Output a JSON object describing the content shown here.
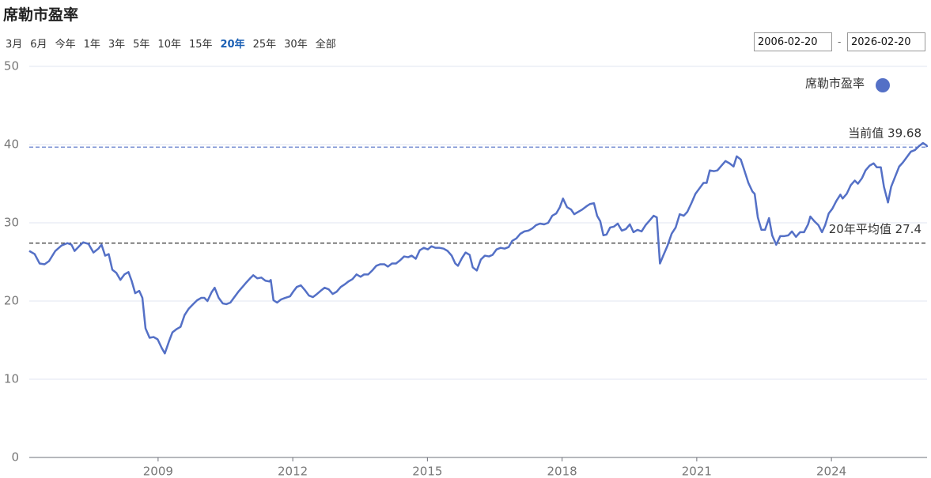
{
  "header": {
    "title": "席勒市盈率",
    "range_buttons": [
      "3月",
      "6月",
      "今年",
      "1年",
      "3年",
      "5年",
      "10年",
      "15年",
      "20年",
      "25年",
      "30年",
      "全部"
    ],
    "active_range_index": 8,
    "start_date": "2006-02-20",
    "end_date": "2026-02-20",
    "date_separator": "-"
  },
  "chart_data": {
    "type": "line",
    "x": [
      2006.13,
      2006.25,
      2006.36,
      2006.47,
      2006.57,
      2006.71,
      2006.85,
      2006.98,
      2007.07,
      2007.14,
      2007.24,
      2007.33,
      2007.45,
      2007.56,
      2007.67,
      2007.74,
      2007.82,
      2007.9,
      2007.98,
      2008.07,
      2008.16,
      2008.25,
      2008.34,
      2008.41,
      2008.49,
      2008.58,
      2008.65,
      2008.72,
      2008.81,
      2008.9,
      2008.99,
      2009.08,
      2009.15,
      2009.24,
      2009.32,
      2009.41,
      2009.5,
      2009.59,
      2009.68,
      2009.78,
      2009.87,
      2009.96,
      2010.03,
      2010.1,
      2010.19,
      2010.26,
      2010.35,
      2010.44,
      2010.52,
      2010.61,
      2010.7,
      2010.79,
      2010.88,
      2010.97,
      2011.05,
      2011.12,
      2011.21,
      2011.3,
      2011.39,
      2011.48,
      2011.51,
      2011.57,
      2011.65,
      2011.74,
      2011.83,
      2011.94,
      2012.01,
      2012.09,
      2012.18,
      2012.27,
      2012.36,
      2012.45,
      2012.54,
      2012.62,
      2012.71,
      2012.8,
      2012.89,
      2012.98,
      2013.07,
      2013.15,
      2013.24,
      2013.33,
      2013.42,
      2013.51,
      2013.59,
      2013.68,
      2013.77,
      2013.86,
      2013.95,
      2014.04,
      2014.12,
      2014.21,
      2014.3,
      2014.39,
      2014.48,
      2014.57,
      2014.65,
      2014.74,
      2014.83,
      2014.92,
      2015.01,
      2015.09,
      2015.18,
      2015.27,
      2015.36,
      2015.45,
      2015.54,
      2015.62,
      2015.68,
      2015.77,
      2015.85,
      2015.94,
      2016.01,
      2016.1,
      2016.19,
      2016.28,
      2016.37,
      2016.45,
      2016.54,
      2016.63,
      2016.72,
      2016.81,
      2016.89,
      2016.98,
      2017.07,
      2017.16,
      2017.25,
      2017.34,
      2017.42,
      2017.51,
      2017.6,
      2017.69,
      2017.78,
      2017.87,
      2017.95,
      2018.02,
      2018.11,
      2018.2,
      2018.27,
      2018.36,
      2018.45,
      2018.54,
      2018.62,
      2018.71,
      2018.78,
      2018.85,
      2018.92,
      2018.99,
      2019.07,
      2019.15,
      2019.24,
      2019.33,
      2019.42,
      2019.51,
      2019.59,
      2019.68,
      2019.77,
      2019.86,
      2019.95,
      2020.04,
      2020.11,
      2020.18,
      2020.26,
      2020.35,
      2020.44,
      2020.53,
      2020.62,
      2020.71,
      2020.79,
      2020.88,
      2020.97,
      2021.06,
      2021.15,
      2021.22,
      2021.29,
      2021.38,
      2021.46,
      2021.55,
      2021.64,
      2021.73,
      2021.82,
      2021.89,
      2021.98,
      2022.06,
      2022.15,
      2022.24,
      2022.29,
      2022.36,
      2022.44,
      2022.52,
      2022.61,
      2022.68,
      2022.77,
      2022.86,
      2022.95,
      2023.04,
      2023.12,
      2023.21,
      2023.3,
      2023.39,
      2023.48,
      2023.53,
      2023.62,
      2023.71,
      2023.79,
      2023.86,
      2023.94,
      2024.02,
      2024.11,
      2024.2,
      2024.25,
      2024.34,
      2024.43,
      2024.52,
      2024.59,
      2024.68,
      2024.76,
      2024.85,
      2024.94,
      2025.01,
      2025.1,
      2025.17,
      2025.26,
      2025.33,
      2025.42,
      2025.51,
      2025.59,
      2025.68,
      2025.77,
      2025.86,
      2025.95,
      2026.04,
      2026.12,
      2026.13
    ],
    "series": [
      {
        "name": "席勒市盈率",
        "color": "#5470c6",
        "values": [
          26.4,
          26.0,
          24.8,
          24.7,
          25.1,
          26.4,
          27.1,
          27.4,
          27.2,
          26.4,
          27.0,
          27.5,
          27.3,
          26.2,
          26.7,
          27.2,
          25.8,
          26.0,
          24.0,
          23.6,
          22.7,
          23.4,
          23.7,
          22.6,
          21.0,
          21.3,
          20.4,
          16.5,
          15.3,
          15.4,
          15.1,
          14.0,
          13.3,
          14.8,
          16.0,
          16.4,
          16.7,
          18.2,
          19.0,
          19.6,
          20.1,
          20.4,
          20.4,
          20.0,
          21.1,
          21.7,
          20.4,
          19.7,
          19.6,
          19.8,
          20.5,
          21.2,
          21.8,
          22.4,
          22.9,
          23.3,
          22.9,
          23.0,
          22.6,
          22.5,
          22.7,
          20.1,
          19.8,
          20.2,
          20.4,
          20.6,
          21.2,
          21.8,
          22.0,
          21.4,
          20.7,
          20.5,
          20.9,
          21.3,
          21.7,
          21.5,
          20.9,
          21.2,
          21.8,
          22.1,
          22.5,
          22.8,
          23.4,
          23.1,
          23.4,
          23.4,
          23.9,
          24.5,
          24.7,
          24.7,
          24.4,
          24.8,
          24.8,
          25.2,
          25.7,
          25.6,
          25.8,
          25.4,
          26.5,
          26.8,
          26.6,
          27.0,
          26.8,
          26.8,
          26.7,
          26.4,
          25.8,
          24.8,
          24.5,
          25.5,
          26.2,
          25.9,
          24.3,
          23.9,
          25.3,
          25.8,
          25.7,
          25.9,
          26.6,
          26.8,
          26.7,
          26.9,
          27.7,
          28.0,
          28.6,
          28.9,
          29.0,
          29.3,
          29.7,
          29.9,
          29.8,
          30.0,
          30.9,
          31.2,
          32.0,
          33.1,
          32.0,
          31.7,
          31.1,
          31.4,
          31.7,
          32.1,
          32.4,
          32.5,
          30.9,
          30.2,
          28.4,
          28.5,
          29.4,
          29.5,
          29.9,
          29.0,
          29.2,
          29.8,
          28.8,
          29.1,
          28.9,
          29.7,
          30.3,
          30.9,
          30.7,
          24.8,
          25.9,
          27.1,
          28.6,
          29.4,
          31.1,
          30.9,
          31.4,
          32.5,
          33.7,
          34.4,
          35.1,
          35.1,
          36.7,
          36.6,
          36.7,
          37.3,
          37.9,
          37.6,
          37.2,
          38.5,
          38.1,
          36.7,
          35.1,
          34.0,
          33.7,
          30.7,
          29.1,
          29.1,
          30.6,
          28.4,
          27.2,
          28.3,
          28.3,
          28.4,
          28.9,
          28.2,
          28.8,
          28.8,
          29.8,
          30.8,
          30.2,
          29.7,
          28.8,
          29.7,
          31.2,
          31.8,
          32.8,
          33.6,
          33.1,
          33.7,
          34.8,
          35.4,
          35.0,
          35.7,
          36.7,
          37.3,
          37.6,
          37.1,
          37.1,
          34.6,
          32.6,
          34.6,
          35.9,
          37.2,
          37.7,
          38.4,
          39.1,
          39.3,
          39.8,
          40.2,
          39.9,
          39.68
        ]
      }
    ],
    "xlim": [
      2006.13,
      2026.13
    ],
    "xticks": [
      2009,
      2012,
      2015,
      2018,
      2021,
      2024
    ],
    "ylim": [
      0,
      50
    ],
    "yticks": [
      0,
      10,
      20,
      30,
      40,
      50
    ],
    "grid": true,
    "legend": "top-right",
    "reference_lines": [
      {
        "label": "当前值 39.68",
        "value": 39.68,
        "color": "#5470c6"
      },
      {
        "label": "20年平均值 27.4",
        "value": 27.4,
        "color": "#333333"
      }
    ]
  }
}
